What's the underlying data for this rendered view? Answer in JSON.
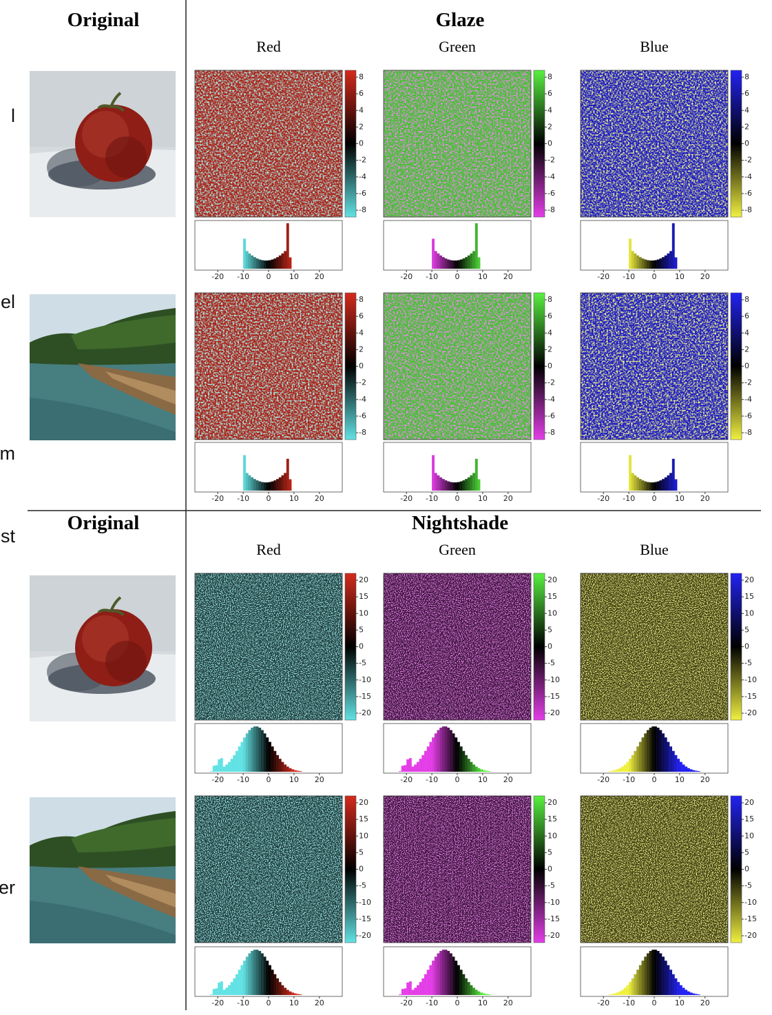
{
  "margin_fragments": [
    "l",
    "el",
    "m",
    "st",
    "er"
  ],
  "sections": [
    {
      "original_label": "Original",
      "method": "Glaze",
      "channels": [
        "Red",
        "Green",
        "Blue"
      ],
      "colorbar_ticks": [
        8,
        6,
        4,
        2,
        0,
        -2,
        -4,
        -6,
        -8
      ],
      "hist_ticks": [
        -20,
        -10,
        0,
        10,
        20
      ]
    },
    {
      "original_label": "Original",
      "method": "Nightshade",
      "channels": [
        "Red",
        "Green",
        "Blue"
      ],
      "colorbar_ticks": [
        20,
        15,
        10,
        5,
        0,
        -5,
        -10,
        -15,
        -20
      ],
      "hist_ticks": [
        -20,
        -10,
        0,
        10,
        20
      ]
    }
  ]
}
